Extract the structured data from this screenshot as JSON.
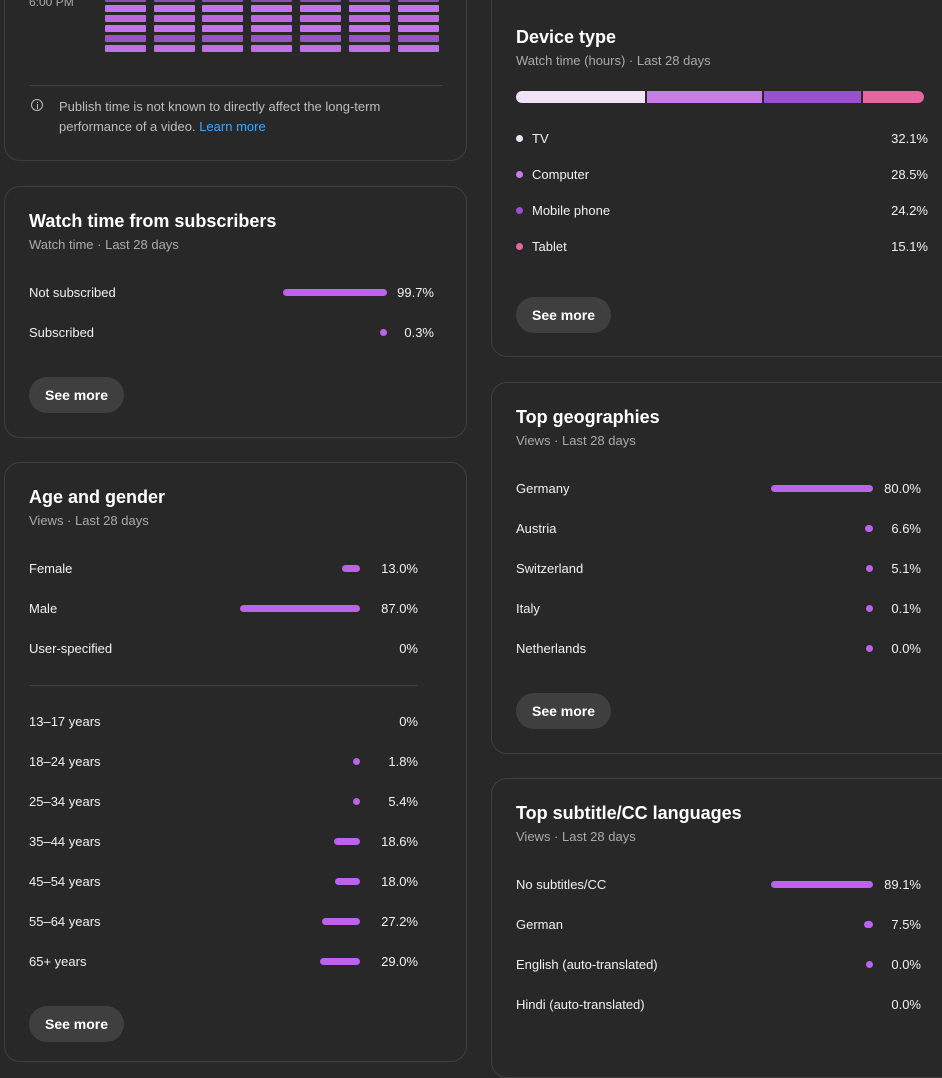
{
  "publish_card": {
    "time_label": "6:00 PM",
    "note": "Publish time is not known to directly affect the long-term performance of a video.",
    "learn_more": "Learn more"
  },
  "subscribers": {
    "title": "Watch time from subscribers",
    "subtitle": "Watch time · Last 28 days",
    "rows": [
      {
        "label": "Not subscribed",
        "value": "99.7%",
        "percent": 99.7
      },
      {
        "label": "Subscribed",
        "value": "0.3%",
        "percent": 0.3
      }
    ],
    "see_more": "See more"
  },
  "age_gender": {
    "title": "Age and gender",
    "subtitle": "Views · Last 28 days",
    "gender": [
      {
        "label": "Female",
        "value": "13.0%",
        "percent": 13.0
      },
      {
        "label": "Male",
        "value": "87.0%",
        "percent": 87.0
      },
      {
        "label": "User-specified",
        "value": "0%",
        "percent": 0
      }
    ],
    "ages": [
      {
        "label": "13–17 years",
        "value": "0%",
        "percent": 0
      },
      {
        "label": "18–24 years",
        "value": "1.8%",
        "percent": 1.8
      },
      {
        "label": "25–34 years",
        "value": "5.4%",
        "percent": 5.4
      },
      {
        "label": "35–44 years",
        "value": "18.6%",
        "percent": 18.6
      },
      {
        "label": "45–54 years",
        "value": "18.0%",
        "percent": 18.0
      },
      {
        "label": "55–64 years",
        "value": "27.2%",
        "percent": 27.2
      },
      {
        "label": "65+ years",
        "value": "29.0%",
        "percent": 29.0
      }
    ],
    "see_more": "See more"
  },
  "device": {
    "title": "Device type",
    "subtitle": "Watch time (hours) · Last 28 days",
    "items": [
      {
        "label": "TV",
        "value": "32.1%",
        "percent": 32.1,
        "color": "#efe3f5"
      },
      {
        "label": "Computer",
        "value": "28.5%",
        "percent": 28.5,
        "color": "#c77ce8"
      },
      {
        "label": "Mobile phone",
        "value": "24.2%",
        "percent": 24.2,
        "color": "#9a4fcf"
      },
      {
        "label": "Tablet",
        "value": "15.1%",
        "percent": 15.1,
        "color": "#e8669f"
      }
    ],
    "see_more": "See more"
  },
  "geographies": {
    "title": "Top geographies",
    "subtitle": "Views · Last 28 days",
    "rows": [
      {
        "label": "Germany",
        "value": "80.0%",
        "percent": 80.0
      },
      {
        "label": "Austria",
        "value": "6.6%",
        "percent": 6.6
      },
      {
        "label": "Switzerland",
        "value": "5.1%",
        "percent": 5.1
      },
      {
        "label": "Italy",
        "value": "0.1%",
        "percent": 0.1
      },
      {
        "label": "Netherlands",
        "value": "0.0%",
        "percent": 0.0
      }
    ],
    "see_more": "See more"
  },
  "subtitles": {
    "title": "Top subtitle/CC languages",
    "subtitle": "Views · Last 28 days",
    "rows": [
      {
        "label": "No subtitles/CC",
        "value": "89.1%",
        "percent": 89.1
      },
      {
        "label": "German",
        "value": "7.5%",
        "percent": 7.5
      },
      {
        "label": "English (auto-translated)",
        "value": "0.0%",
        "percent": 0.0
      },
      {
        "label": "Hindi (auto-translated)",
        "value": "0.0%",
        "percent": 0.0
      }
    ]
  },
  "colors": {
    "accent": "#bb63ea",
    "card_border": "#3f3f3f",
    "link": "#3ea6ff"
  }
}
